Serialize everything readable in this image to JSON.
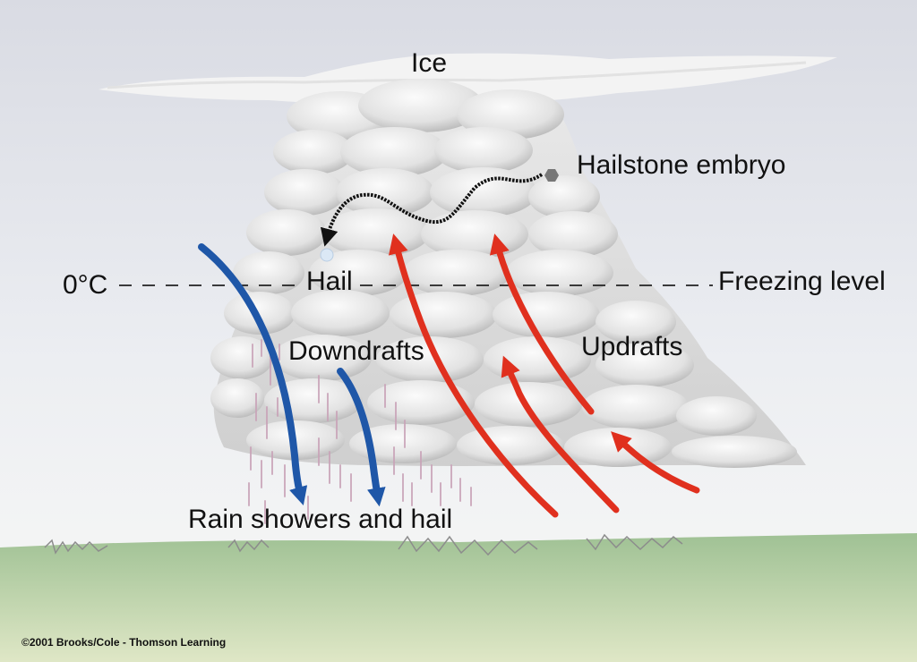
{
  "labels": {
    "ice": "Ice",
    "hailstone_embryo": "Hailstone embryo",
    "zero_c": "0°C",
    "hail": "Hail",
    "freezing_level": "Freezing level",
    "downdrafts": "Downdrafts",
    "updrafts": "Updrafts",
    "rain_showers": "Rain showers and hail"
  },
  "copyright": "©2001 Brooks/Cole - Thomson Learning",
  "colors": {
    "updraft": "#e0301e",
    "downdraft": "#1f57a8",
    "embryo_path": "#111111",
    "ground": "#a9c79a",
    "sky": "#eef0f4",
    "rain": "#c9a3b8"
  }
}
